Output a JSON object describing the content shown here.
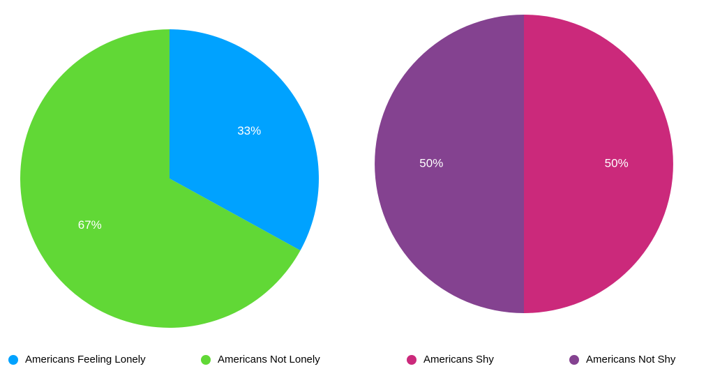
{
  "chart_data": [
    {
      "type": "pie",
      "slices": [
        {
          "label": "Americans Feeling Lonely",
          "value": 33,
          "display": "33%",
          "color": "#00A2FF"
        },
        {
          "label": "Americans Not Lonely",
          "value": 67,
          "display": "67%",
          "color": "#61D836"
        }
      ]
    },
    {
      "type": "pie",
      "slices": [
        {
          "label": "Americans Shy",
          "value": 50,
          "display": "50%",
          "color": "#CB297B"
        },
        {
          "label": "Americans Not Shy",
          "value": 50,
          "display": "50%",
          "color": "#844290"
        }
      ]
    }
  ]
}
